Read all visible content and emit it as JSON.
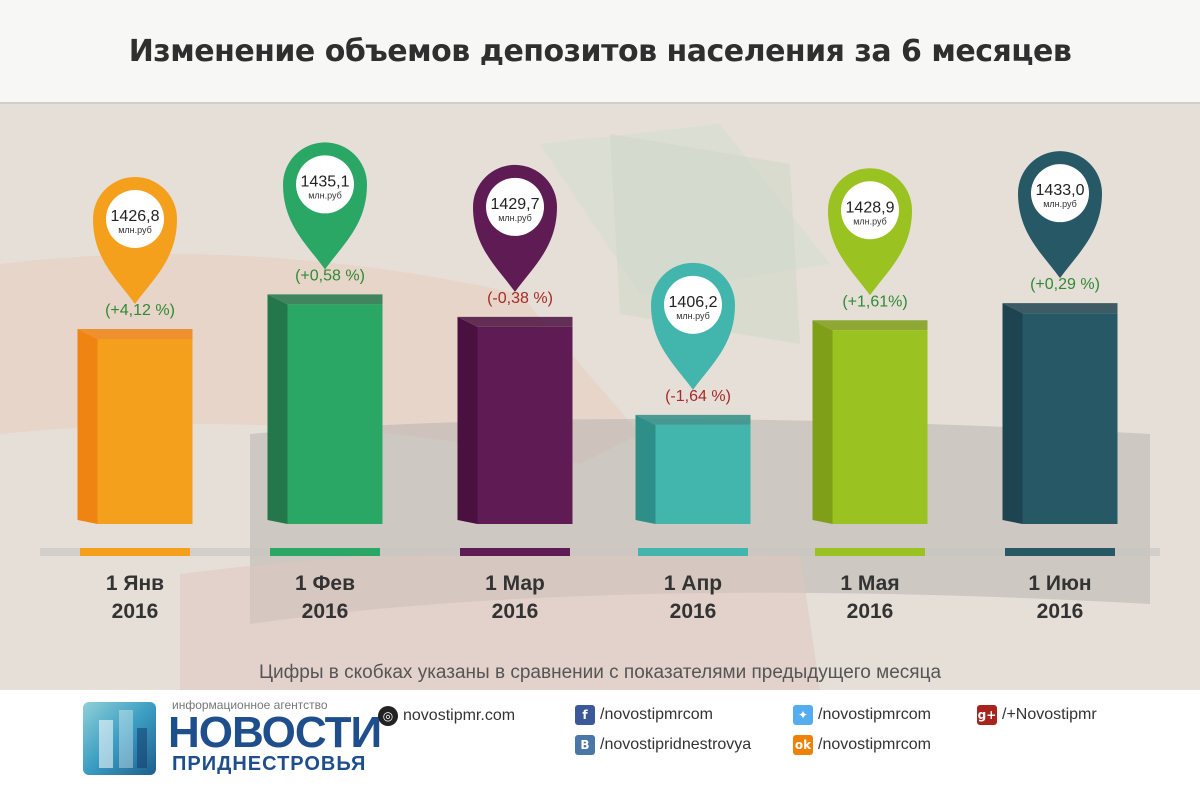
{
  "title": "Изменение объемов депозитов населения за 6 месяцев",
  "footnote": "Цифры в скобках указаны в сравнении с показателями предыдущего месяца",
  "chart_data": {
    "type": "bar",
    "title": "Изменение объемов депозитов населения за 6 месяцев",
    "unit": "млн.руб",
    "categories": [
      [
        "1 Янв",
        "2016"
      ],
      [
        "1 Фев",
        "2016"
      ],
      [
        "1 Мар",
        "2016"
      ],
      [
        "1 Апр",
        "2016"
      ],
      [
        "1 Мая",
        "2016"
      ],
      [
        "1 Июн",
        "2016"
      ]
    ],
    "values": [
      1426.8,
      1435.1,
      1429.7,
      1406.2,
      1428.9,
      1433.0
    ],
    "value_labels": [
      "1426,8",
      "1435,1",
      "1429,7",
      "1406,2",
      "1428,9",
      "1433,0"
    ],
    "change_labels": [
      "(+4,12 %)",
      "(+0,58 %)",
      "(-0,38 %)",
      "(-1,64 %)",
      "(+1,61%)",
      "(+0,29 %)"
    ],
    "changes": [
      4.12,
      0.58,
      -0.38,
      -1.64,
      1.61,
      0.29
    ],
    "colors": [
      "#f4a01d",
      "#2aa764",
      "#5f1c54",
      "#42b5ad",
      "#9ac221",
      "#265866"
    ],
    "side_colors": [
      "#ef8412",
      "#23774b",
      "#4a1040",
      "#2e8f88",
      "#7f9f18",
      "#1d4450"
    ],
    "positive_color": "#2f8a33",
    "negative_color": "#a52a2a"
  },
  "footer": {
    "agency_label": "информационное агентство",
    "brand_name": "НОВОСТИ",
    "brand_region": "ПРИДНЕСТРОВЬЯ",
    "links": [
      {
        "icon": "globe-icon",
        "glyph": "◎",
        "text": "novostipmr.com"
      },
      {
        "icon": "facebook-icon",
        "glyph": "f",
        "text": "/novostipmrcom"
      },
      {
        "icon": "vk-icon",
        "glyph": "В",
        "text": "/novostipridnestrovya"
      },
      {
        "icon": "twitter-icon",
        "glyph": "✦",
        "text": "/novostipmrcom"
      },
      {
        "icon": "odnoklassniki-icon",
        "glyph": "ok",
        "text": "/novostipmrcom"
      },
      {
        "icon": "google-plus-icon",
        "glyph": "g+",
        "text": "/+Novostipmr"
      }
    ]
  }
}
